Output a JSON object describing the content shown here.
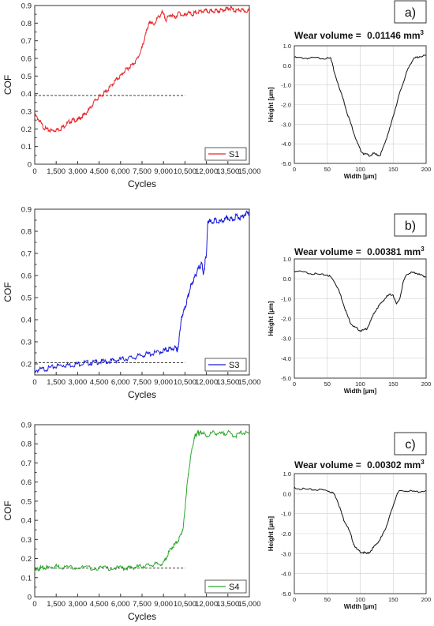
{
  "chart_data": [
    {
      "type": "line",
      "ylabel": "COF",
      "xlabel": "Cycles",
      "xlim": [
        0,
        15000
      ],
      "ylim": [
        0,
        0.9
      ],
      "xticks": [
        "0",
        "1,500",
        "3,000",
        "4,500",
        "6,000",
        "7,500",
        "9,000",
        "10,500",
        "12,000",
        "13,500",
        "15,000"
      ],
      "yticks": [
        "0",
        "0.1",
        "0.2",
        "0.3",
        "0.4",
        "0.5",
        "0.6",
        "0.7",
        "0.8",
        "0.9"
      ],
      "legend_position": "bottom-right",
      "reference_line": {
        "y": 0.39,
        "x": [
          0,
          10500
        ]
      },
      "series": [
        {
          "name": "S1",
          "color": "#e8272a",
          "x": [
            0,
            300,
            600,
            900,
            1200,
            1500,
            1800,
            2100,
            2400,
            2700,
            3000,
            3300,
            3600,
            3900,
            4200,
            4500,
            4800,
            5100,
            5400,
            5700,
            6000,
            6300,
            6600,
            6900,
            7200,
            7500,
            7700,
            7900,
            8100,
            8300,
            8600,
            8900,
            9200,
            9500,
            9800,
            10100,
            10400,
            10700,
            11000,
            11300,
            11600,
            11900,
            12200,
            12500,
            12800,
            13100,
            13400,
            13700,
            14000,
            14300,
            14600,
            15000
          ],
          "y": [
            0.28,
            0.25,
            0.21,
            0.195,
            0.19,
            0.195,
            0.2,
            0.22,
            0.24,
            0.25,
            0.25,
            0.27,
            0.29,
            0.32,
            0.36,
            0.38,
            0.4,
            0.42,
            0.45,
            0.48,
            0.5,
            0.53,
            0.55,
            0.57,
            0.6,
            0.66,
            0.72,
            0.78,
            0.81,
            0.79,
            0.83,
            0.86,
            0.82,
            0.85,
            0.83,
            0.86,
            0.84,
            0.86,
            0.85,
            0.86,
            0.865,
            0.87,
            0.865,
            0.87,
            0.87,
            0.875,
            0.88,
            0.885,
            0.87,
            0.875,
            0.87,
            0.87
          ]
        }
      ]
    },
    {
      "type": "line",
      "ylabel": "COF",
      "xlabel": "Cycles",
      "xlim": [
        0,
        15000
      ],
      "ylim": [
        0.15,
        0.9
      ],
      "xticks": [
        "0",
        "1,500",
        "3,000",
        "4,500",
        "6,000",
        "7,500",
        "9,000",
        "10,500",
        "12,000",
        "13,500",
        "15,000"
      ],
      "yticks": [
        "0.2",
        "0.3",
        "0.4",
        "0.5",
        "0.6",
        "0.7",
        "0.8",
        "0.9"
      ],
      "legend_position": "bottom-right",
      "reference_line": {
        "y": 0.205,
        "x": [
          0,
          10500
        ]
      },
      "series": [
        {
          "name": "S3",
          "color": "#1a1adc",
          "x": [
            0,
            500,
            1000,
            1500,
            2000,
            2500,
            3000,
            3500,
            4000,
            4500,
            5000,
            5500,
            6000,
            6500,
            7000,
            7500,
            8000,
            8500,
            9000,
            9300,
            9600,
            9900,
            10000,
            10100,
            10200,
            10300,
            10500,
            10700,
            10900,
            11100,
            11300,
            11500,
            11700,
            11800,
            11900,
            12000,
            12100,
            12300,
            12600,
            12900,
            13200,
            13500,
            13800,
            14100,
            14400,
            14700,
            15000
          ],
          "y": [
            0.17,
            0.175,
            0.18,
            0.19,
            0.195,
            0.195,
            0.2,
            0.205,
            0.205,
            0.21,
            0.21,
            0.215,
            0.22,
            0.225,
            0.23,
            0.24,
            0.245,
            0.25,
            0.26,
            0.265,
            0.27,
            0.27,
            0.26,
            0.32,
            0.38,
            0.42,
            0.45,
            0.5,
            0.55,
            0.58,
            0.61,
            0.64,
            0.65,
            0.6,
            0.66,
            0.7,
            0.85,
            0.84,
            0.85,
            0.84,
            0.85,
            0.86,
            0.85,
            0.87,
            0.86,
            0.88,
            0.88
          ]
        }
      ]
    },
    {
      "type": "line",
      "ylabel": "COF",
      "xlabel": "Cycles",
      "xlim": [
        0,
        15000
      ],
      "ylim": [
        0,
        0.9
      ],
      "xticks": [
        "0",
        "1,500",
        "3,000",
        "4,500",
        "6,000",
        "7,500",
        "9,000",
        "10,500",
        "12,000",
        "13,500",
        "15,000"
      ],
      "yticks": [
        "0",
        "0.1",
        "0.2",
        "0.3",
        "0.4",
        "0.5",
        "0.6",
        "0.7",
        "0.8",
        "0.9"
      ],
      "legend_position": "bottom-right",
      "reference_line": {
        "y": 0.15,
        "x": [
          0,
          10500
        ]
      },
      "series": [
        {
          "name": "S4",
          "color": "#2ca82c",
          "x": [
            0,
            300,
            600,
            1000,
            1500,
            2000,
            3000,
            4000,
            5000,
            6000,
            6500,
            7000,
            7500,
            8000,
            8500,
            9000,
            9300,
            9600,
            9900,
            10200,
            10400,
            10600,
            10800,
            11000,
            11200,
            11400,
            11500,
            11700,
            12000,
            12500,
            13000,
            13500,
            14000,
            14500,
            15000
          ],
          "y": [
            0.13,
            0.15,
            0.15,
            0.155,
            0.16,
            0.155,
            0.155,
            0.15,
            0.15,
            0.15,
            0.15,
            0.155,
            0.16,
            0.165,
            0.17,
            0.175,
            0.22,
            0.26,
            0.28,
            0.32,
            0.37,
            0.55,
            0.68,
            0.78,
            0.84,
            0.86,
            0.85,
            0.86,
            0.84,
            0.86,
            0.85,
            0.86,
            0.84,
            0.86,
            0.85
          ]
        }
      ]
    },
    {
      "type": "line",
      "panel_label": "a)",
      "wear_label": "Wear volume = ",
      "wear_value": "0.01146 mm",
      "wear_exp": "3",
      "ylabel": "Height [µm]",
      "xlabel": "Width [µm]",
      "xlim": [
        0,
        200
      ],
      "ylim": [
        -5,
        1
      ],
      "xticks": [
        "0",
        "50",
        "100",
        "150",
        "200"
      ],
      "yticks": [
        "-5.0",
        "-4.0",
        "-3.0",
        "-2.0",
        "-1.0",
        "0.0",
        "1.0"
      ],
      "series": [
        {
          "color": "#111111",
          "x": [
            0,
            10,
            20,
            30,
            40,
            50,
            55,
            58,
            60,
            65,
            70,
            75,
            80,
            85,
            90,
            95,
            100,
            105,
            110,
            115,
            120,
            125,
            130,
            135,
            140,
            145,
            150,
            155,
            160,
            165,
            170,
            175,
            180,
            185,
            190,
            200
          ],
          "y": [
            0.4,
            0.38,
            0.37,
            0.38,
            0.37,
            0.36,
            0.35,
            0.1,
            -0.3,
            -0.8,
            -1.3,
            -1.8,
            -2.4,
            -2.9,
            -3.4,
            -3.9,
            -4.3,
            -4.5,
            -4.55,
            -4.6,
            -4.5,
            -4.55,
            -4.6,
            -4.2,
            -3.7,
            -3.2,
            -2.6,
            -2.0,
            -1.4,
            -0.9,
            -0.4,
            0.0,
            0.3,
            0.4,
            0.45,
            0.5
          ]
        }
      ]
    },
    {
      "type": "line",
      "panel_label": "b)",
      "wear_label": "Wear volume = ",
      "wear_value": "0.00381 mm",
      "wear_exp": "3",
      "ylabel": "Height [µm]",
      "xlabel": "Width [µm]",
      "xlim": [
        0,
        200
      ],
      "ylim": [
        -5,
        1
      ],
      "xticks": [
        "0",
        "50",
        "100",
        "150",
        "200"
      ],
      "yticks": [
        "-5.0",
        "-4.0",
        "-3.0",
        "-2.0",
        "-1.0",
        "0.0",
        "1.0"
      ],
      "series": [
        {
          "color": "#111111",
          "x": [
            0,
            10,
            20,
            30,
            40,
            50,
            55,
            60,
            65,
            70,
            75,
            80,
            85,
            90,
            95,
            100,
            105,
            110,
            115,
            120,
            125,
            130,
            135,
            140,
            145,
            150,
            155,
            160,
            165,
            170,
            175,
            180,
            185,
            190,
            195,
            200
          ],
          "y": [
            0.4,
            0.35,
            0.3,
            0.25,
            0.2,
            0.2,
            0.1,
            -0.1,
            -0.4,
            -0.8,
            -1.3,
            -1.8,
            -2.2,
            -2.4,
            -2.5,
            -2.6,
            -2.6,
            -2.5,
            -2.2,
            -1.8,
            -1.5,
            -1.3,
            -1.1,
            -0.9,
            -0.8,
            -0.8,
            -1.3,
            -1.0,
            -0.2,
            0.2,
            0.3,
            0.3,
            0.3,
            0.2,
            0.15,
            0.1
          ]
        }
      ]
    },
    {
      "type": "line",
      "panel_label": "c)",
      "wear_label": "Wear volume = ",
      "wear_value": "0.00302 mm",
      "wear_exp": "3",
      "ylabel": "Height [µm]",
      "xlabel": "Width [µm]",
      "xlim": [
        0,
        200
      ],
      "ylim": [
        -5,
        1
      ],
      "xticks": [
        "0",
        "50",
        "100",
        "150",
        "200"
      ],
      "yticks": [
        "-5.0",
        "-4.0",
        "-3.0",
        "-2.0",
        "-1.0",
        "0.0",
        "1.0"
      ],
      "series": [
        {
          "color": "#111111",
          "x": [
            0,
            10,
            20,
            30,
            40,
            50,
            55,
            60,
            65,
            70,
            75,
            80,
            85,
            90,
            95,
            100,
            105,
            110,
            115,
            120,
            125,
            130,
            135,
            140,
            145,
            150,
            155,
            160,
            170,
            180,
            190,
            200
          ],
          "y": [
            0.3,
            0.25,
            0.2,
            0.2,
            0.2,
            0.15,
            0.1,
            0.0,
            -0.3,
            -0.8,
            -1.3,
            -1.6,
            -2.0,
            -2.5,
            -2.8,
            -2.9,
            -2.95,
            -3.0,
            -2.9,
            -2.7,
            -2.5,
            -2.3,
            -2.0,
            -1.6,
            -1.1,
            -0.6,
            -0.1,
            0.15,
            0.15,
            0.1,
            0.1,
            0.15
          ]
        }
      ]
    }
  ]
}
